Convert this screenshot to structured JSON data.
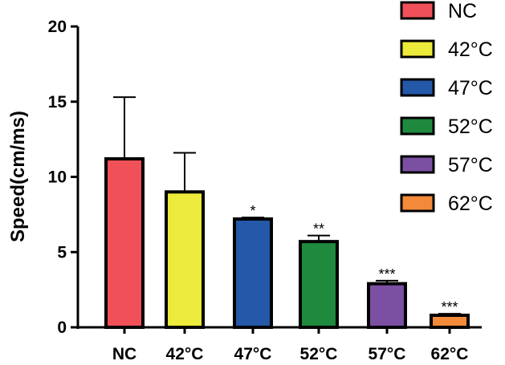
{
  "chart_data": {
    "type": "bar",
    "categories": [
      "NC",
      "42°C",
      "47°C",
      "52°C",
      "57°C",
      "62°C"
    ],
    "values": [
      11.2,
      9.0,
      7.2,
      5.7,
      2.9,
      0.8
    ],
    "errors": [
      4.1,
      2.6,
      0.1,
      0.4,
      0.2,
      0.1
    ],
    "significance": [
      "",
      "",
      "*",
      "**",
      "***",
      "***"
    ],
    "colors": [
      "#F05058",
      "#ECEA3A",
      "#2458A8",
      "#1F8A3E",
      "#7B4FA2",
      "#F28A3A"
    ],
    "ylabel": "Speed(cm/ms)",
    "ylim": [
      0,
      20
    ],
    "yticks": [
      "0",
      "5",
      "10",
      "15",
      "20"
    ],
    "grid": false,
    "legend_position": "top-right"
  }
}
